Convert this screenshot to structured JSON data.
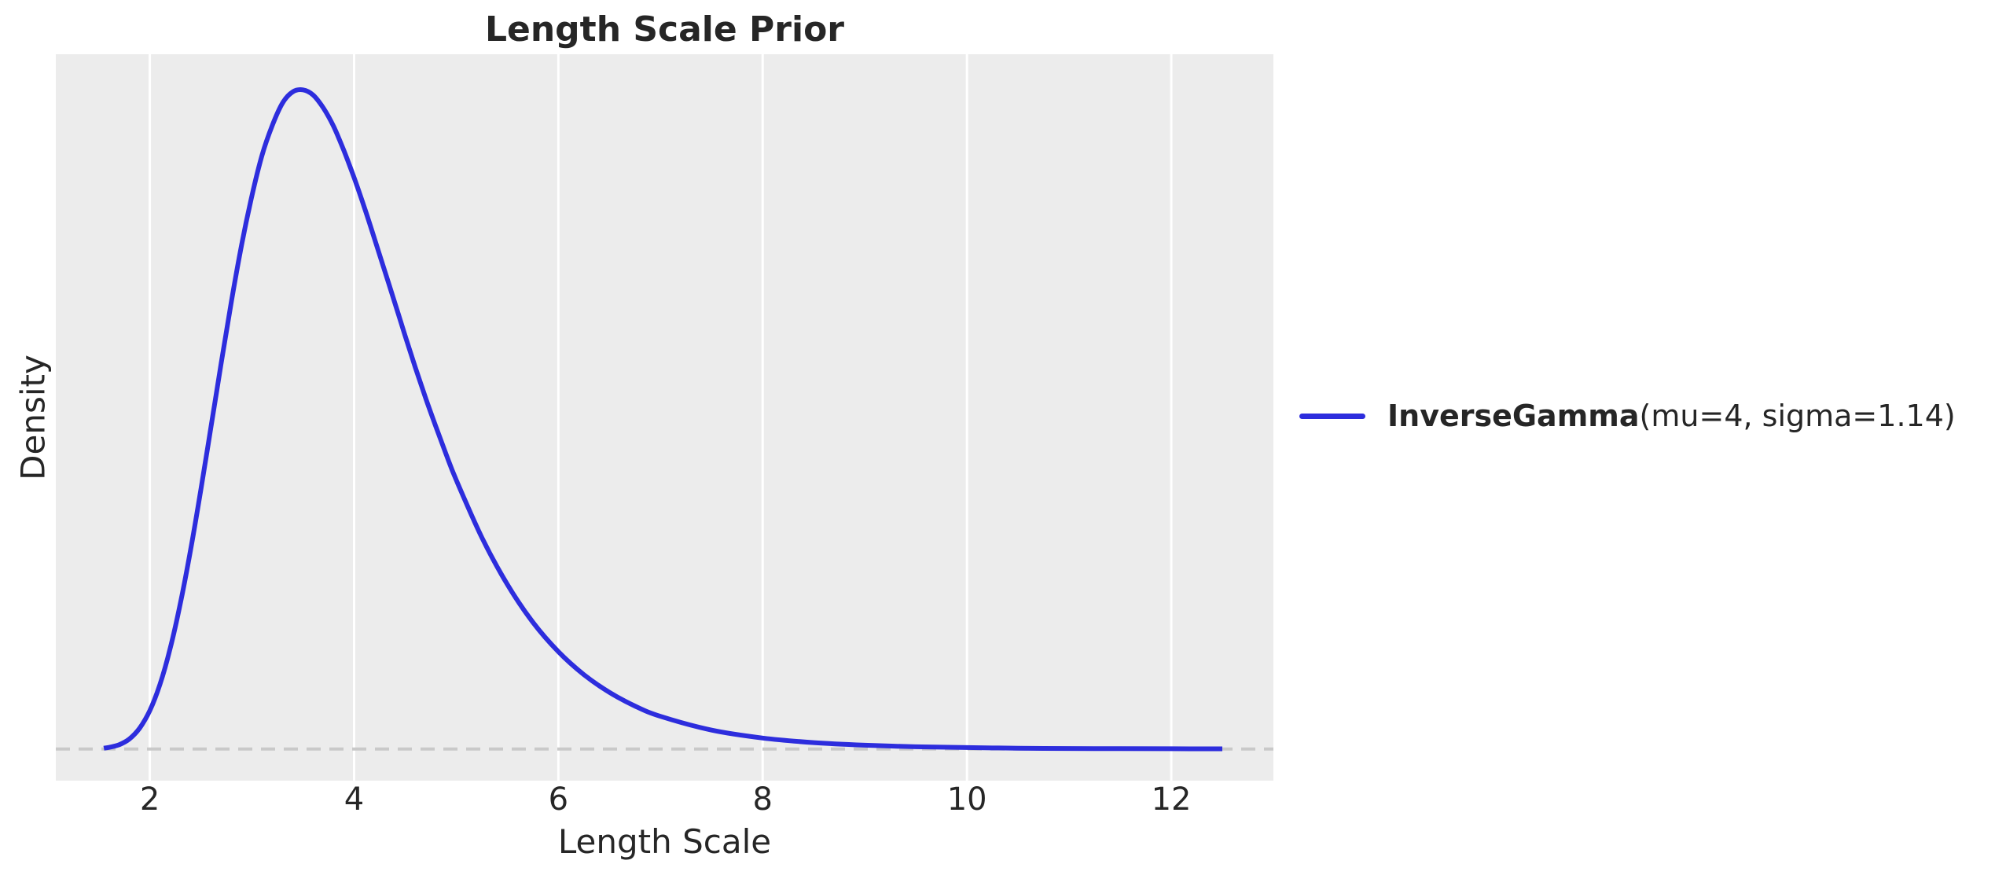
{
  "chart_data": {
    "type": "line",
    "title": "Length Scale Prior",
    "xlabel": "Length Scale",
    "ylabel": "Density",
    "xlim": [
      1.08,
      13.0
    ],
    "ylim": [
      -0.02,
      0.4385
    ],
    "x_ticks": [
      2,
      4,
      6,
      8,
      10,
      12
    ],
    "y_ticks": [],
    "grid": "vertical-only",
    "legend_position": "center-right-outside",
    "colors": {
      "plot_bg": "#ececec",
      "grid": "#ffffff",
      "zero_line": "#c9c9c9",
      "text": "#262626"
    },
    "zero_line": {
      "y": 0,
      "style": "dashed"
    },
    "series": [
      {
        "name": "InverseGamma(mu=4, sigma=1.14)",
        "label_bold": "InverseGamma",
        "label_regular": "(mu=4, sigma=1.14)",
        "color": "#2d2ddd",
        "x": [
          1.55,
          1.6,
          1.7,
          1.8,
          1.9,
          2.0,
          2.1,
          2.2,
          2.3,
          2.4,
          2.5,
          2.6,
          2.7,
          2.8,
          2.9,
          3.0,
          3.1,
          3.2,
          3.3,
          3.4,
          3.5,
          3.6,
          3.7,
          3.8,
          3.9,
          4.0,
          4.1,
          4.2,
          4.3,
          4.4,
          4.5,
          4.6,
          4.7,
          4.8,
          4.9,
          5.0,
          5.25,
          5.5,
          5.75,
          6.0,
          6.25,
          6.5,
          6.75,
          7.0,
          7.5,
          8.0,
          8.5,
          9.0,
          9.5,
          10.0,
          10.5,
          11.0,
          11.5,
          12.0,
          12.5
        ],
        "y": [
          0.0005,
          0.001,
          0.0027,
          0.0063,
          0.0131,
          0.0242,
          0.0408,
          0.0635,
          0.0921,
          0.1258,
          0.1636,
          0.2036,
          0.2439,
          0.2828,
          0.3185,
          0.3492,
          0.375,
          0.3937,
          0.4078,
          0.4148,
          0.416,
          0.4127,
          0.4045,
          0.3929,
          0.3777,
          0.3606,
          0.342,
          0.3221,
          0.3018,
          0.2814,
          0.2608,
          0.2407,
          0.2216,
          0.2036,
          0.1862,
          0.1698,
          0.1336,
          0.1039,
          0.08,
          0.0614,
          0.0469,
          0.0357,
          0.0271,
          0.0206,
          0.0119,
          0.0069,
          0.004,
          0.0024,
          0.0014,
          0.0009,
          0.0005,
          0.0003,
          0.0002,
          0.00013,
          8e-05
        ]
      }
    ]
  }
}
